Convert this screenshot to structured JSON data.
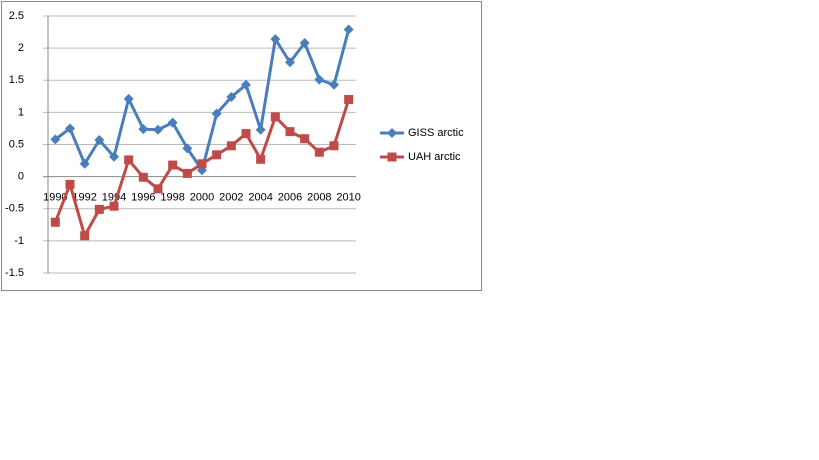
{
  "chart_data": {
    "type": "line",
    "categories": [
      "1990",
      null,
      "1992",
      null,
      "1994",
      null,
      "1996",
      null,
      "1998",
      null,
      "2000",
      null,
      "2002",
      null,
      "2004",
      null,
      "2006",
      null,
      "2008",
      null,
      "2010"
    ],
    "series": [
      {
        "name": "GISS arctic",
        "color": "#4a7ebb",
        "marker": "diamond",
        "values": [
          0.58,
          0.75,
          0.2,
          0.57,
          0.31,
          1.21,
          0.74,
          0.73,
          0.84,
          0.44,
          0.1,
          0.98,
          1.24,
          1.43,
          0.73,
          2.14,
          1.78,
          2.08,
          1.51,
          1.43,
          2.29
        ]
      },
      {
        "name": "UAH arctic",
        "color": "#be4b48",
        "marker": "square",
        "values": [
          -0.71,
          -0.12,
          -0.92,
          -0.51,
          -0.46,
          0.26,
          -0.01,
          -0.19,
          0.18,
          0.05,
          0.2,
          0.34,
          0.48,
          0.67,
          0.27,
          0.93,
          0.7,
          0.59,
          0.38,
          0.48,
          1.2
        ]
      }
    ],
    "ylim": [
      -1.5,
      2.5
    ],
    "yticks": [
      2.5,
      2,
      1.5,
      1,
      0.5,
      0,
      -0.5,
      -1,
      -1.5
    ],
    "grid": true,
    "legend": "right"
  }
}
